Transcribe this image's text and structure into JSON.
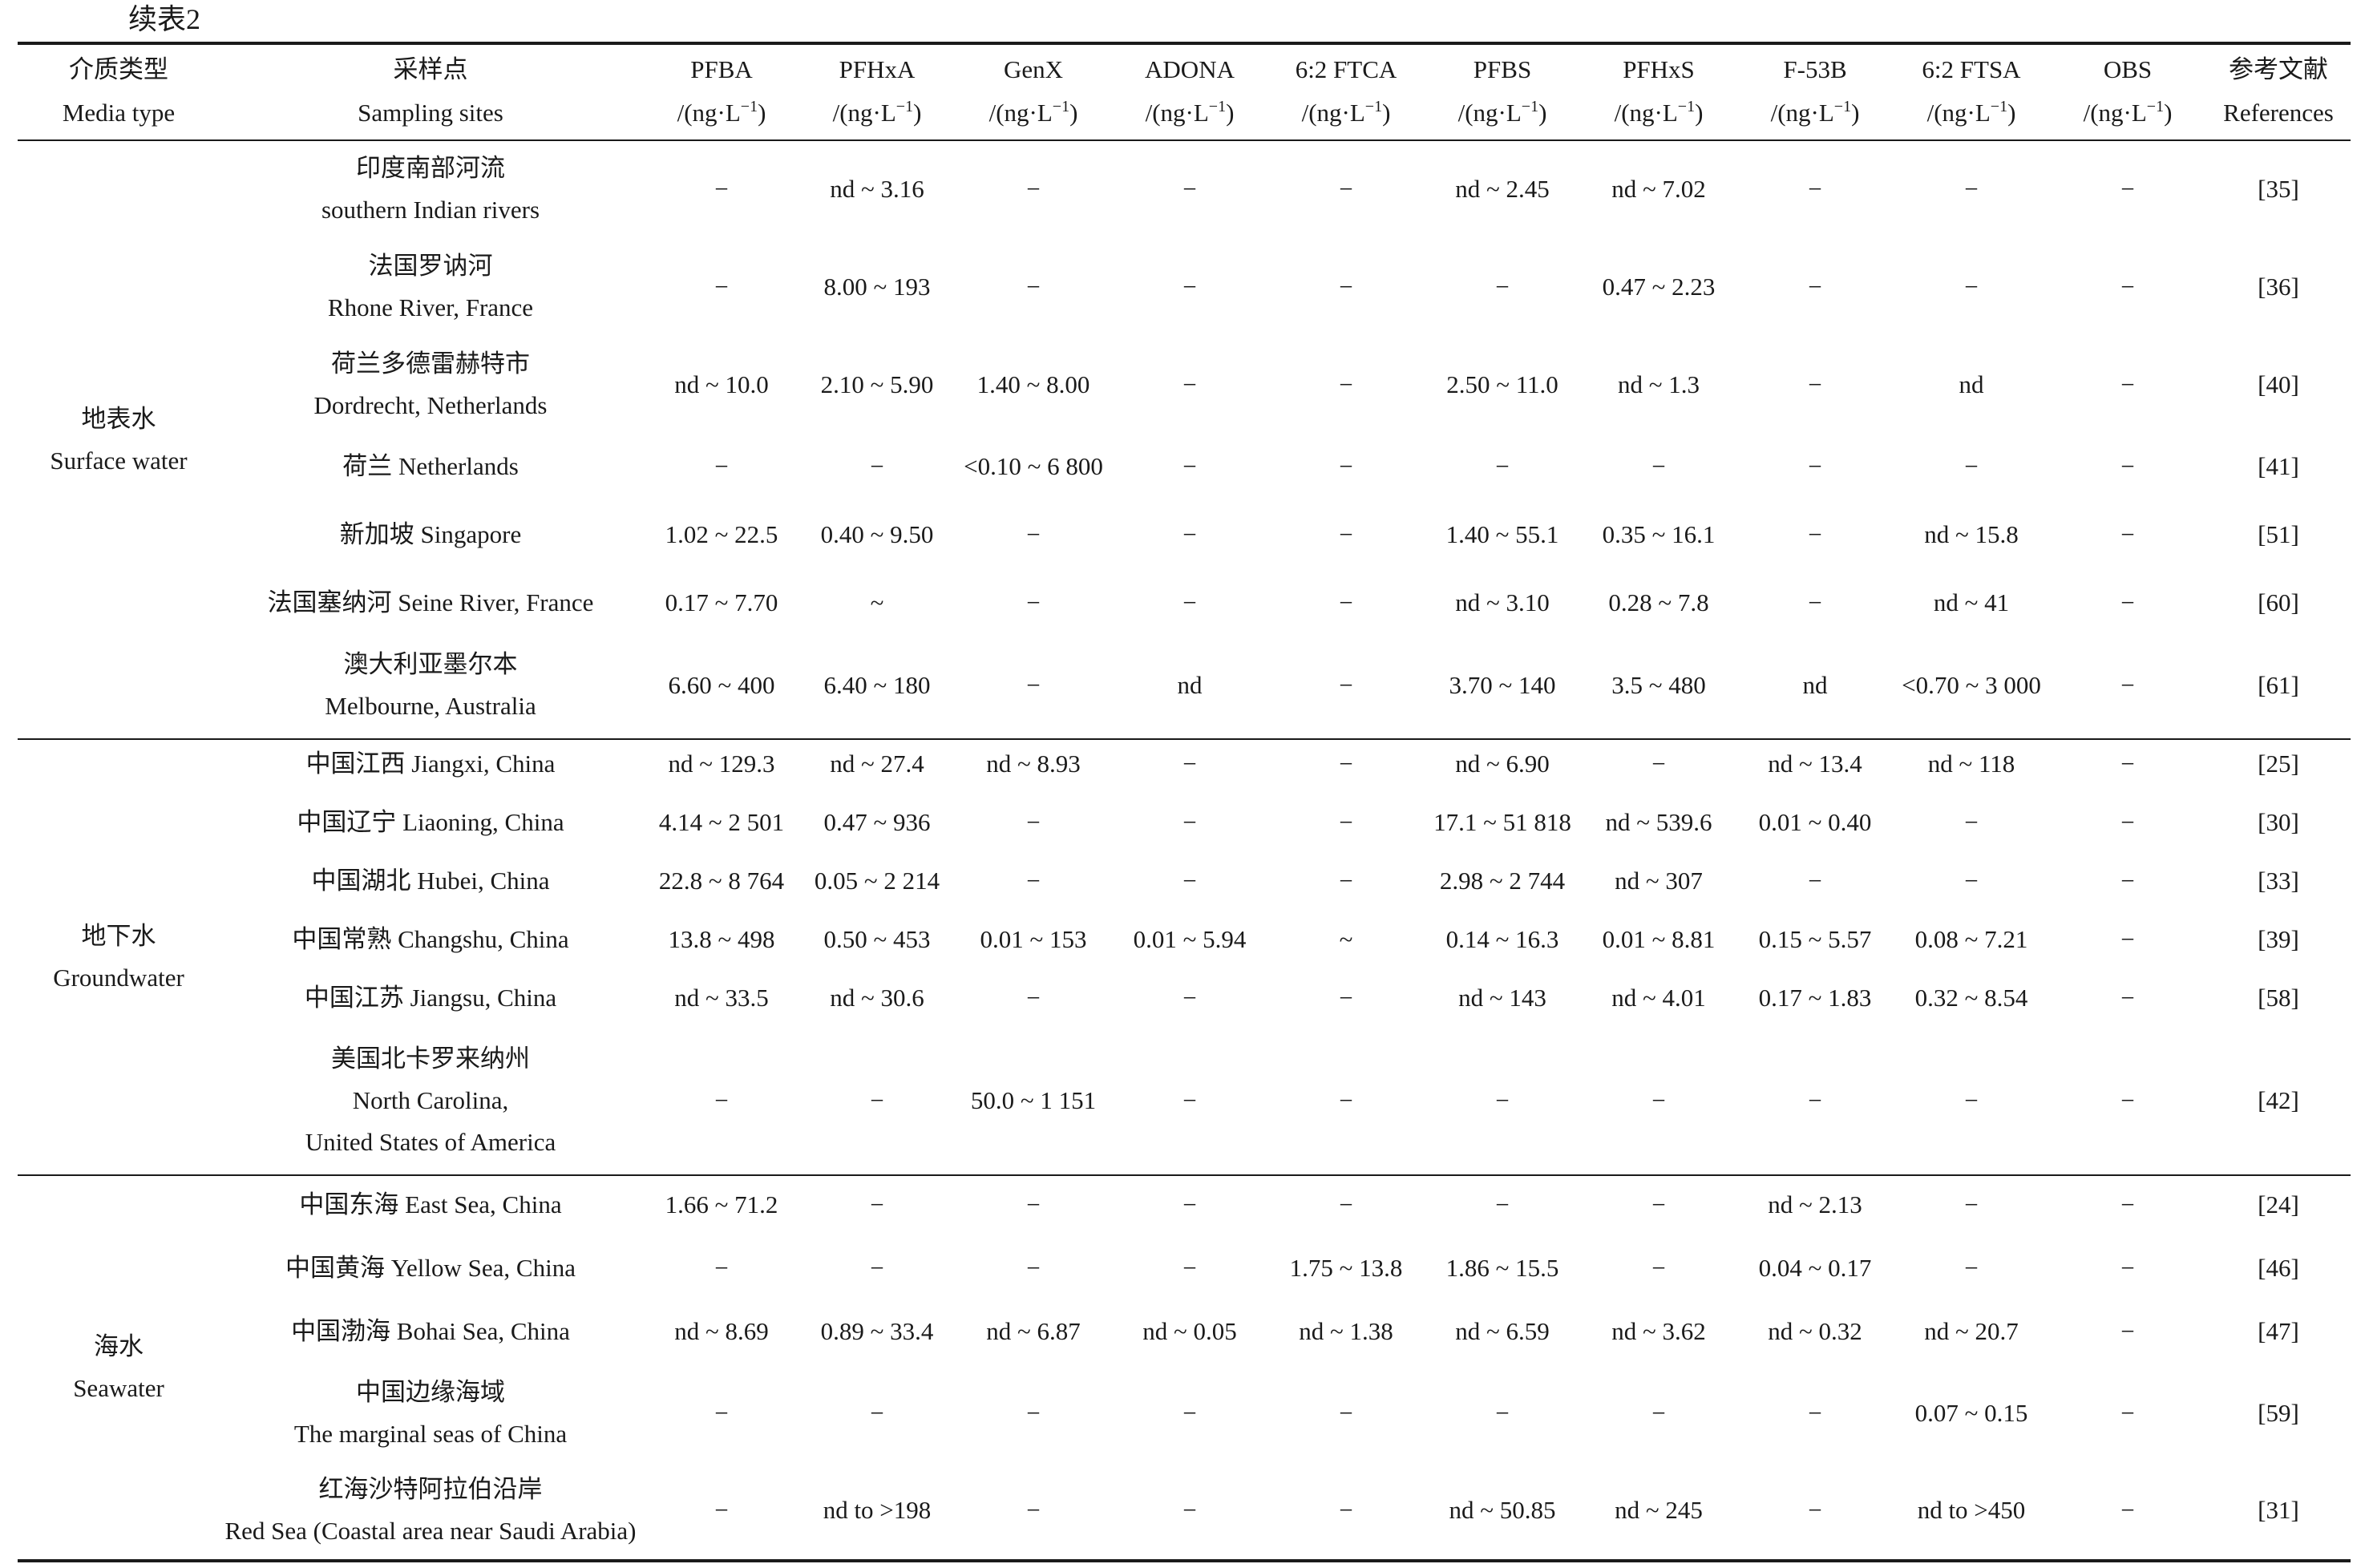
{
  "caption": "续表2",
  "header": {
    "media_zh": "介质类型",
    "media_en": "Media type",
    "site_zh": "采样点",
    "site_en": "Sampling sites",
    "ref_zh": "参考文献",
    "ref_en": "References",
    "unit_prefix": "/(ng·L",
    "unit_sup": "−1",
    "unit_suffix": ")",
    "compounds": [
      "PFBA",
      "PFHxA",
      "GenX",
      "ADONA",
      "6:2 FTCA",
      "PFBS",
      "PFHxS",
      "F-53B",
      "6:2 FTSA",
      "OBS"
    ]
  },
  "groups": [
    {
      "media_zh": "地表水",
      "media_en": "Surface water",
      "rows": [
        {
          "site": [
            "印度南部河流",
            "southern Indian rivers"
          ],
          "values": [
            "−",
            "nd ~ 3.16",
            "−",
            "−",
            "−",
            "nd ~ 2.45",
            "nd ~ 7.02",
            "−",
            "−",
            "−"
          ],
          "ref": "[35]"
        },
        {
          "site": [
            "法国罗讷河",
            "Rhone River, France"
          ],
          "values": [
            "−",
            "8.00 ~ 193",
            "−",
            "−",
            "−",
            "−",
            "0.47 ~ 2.23",
            "−",
            "−",
            "−"
          ],
          "ref": "[36]"
        },
        {
          "site": [
            "荷兰多德雷赫特市",
            "Dordrecht, Netherlands"
          ],
          "values": [
            "nd ~ 10.0",
            "2.10 ~ 5.90",
            "1.40 ~ 8.00",
            "−",
            "−",
            "2.50 ~ 11.0",
            "nd ~ 1.3",
            "−",
            "nd",
            "−"
          ],
          "ref": "[40]"
        },
        {
          "site": [
            "荷兰 Netherlands"
          ],
          "values": [
            "−",
            "−",
            "<0.10 ~ 6 800",
            "−",
            "−",
            "−",
            "−",
            "−",
            "−",
            "−"
          ],
          "ref": "[41]"
        },
        {
          "site": [
            "新加坡 Singapore"
          ],
          "values": [
            "1.02 ~ 22.5",
            "0.40 ~ 9.50",
            "−",
            "−",
            "−",
            "1.40 ~ 55.1",
            "0.35 ~ 16.1",
            "−",
            "nd ~ 15.8",
            "−"
          ],
          "ref": "[51]"
        },
        {
          "site": [
            "法国塞纳河 Seine River, France"
          ],
          "values": [
            "0.17 ~ 7.70",
            "~",
            "−",
            "−",
            "−",
            "nd ~ 3.10",
            "0.28 ~ 7.8",
            "−",
            "nd ~ 41",
            "−"
          ],
          "ref": "[60]"
        },
        {
          "site": [
            "澳大利亚墨尔本",
            "Melbourne, Australia"
          ],
          "values": [
            "6.60 ~ 400",
            "6.40 ~ 180",
            "−",
            "nd",
            "−",
            "3.70 ~ 140",
            "3.5 ~ 480",
            "nd",
            "<0.70 ~ 3 000",
            "−"
          ],
          "ref": "[61]"
        }
      ]
    },
    {
      "media_zh": "地下水",
      "media_en": "Groundwater",
      "rows": [
        {
          "site": [
            "中国江西 Jiangxi, China"
          ],
          "values": [
            "nd ~ 129.3",
            "nd ~ 27.4",
            "nd ~ 8.93",
            "−",
            "−",
            "nd ~ 6.90",
            "−",
            "nd ~ 13.4",
            "nd ~ 118",
            "−"
          ],
          "ref": "[25]"
        },
        {
          "site": [
            "中国辽宁 Liaoning, China"
          ],
          "values": [
            "4.14 ~ 2 501",
            "0.47 ~ 936",
            "−",
            "−",
            "−",
            "17.1 ~ 51 818",
            "nd ~ 539.6",
            "0.01 ~ 0.40",
            "−",
            "−"
          ],
          "ref": "[30]"
        },
        {
          "site": [
            "中国湖北 Hubei, China"
          ],
          "values": [
            "22.8 ~ 8 764",
            "0.05 ~ 2 214",
            "−",
            "−",
            "−",
            "2.98 ~ 2 744",
            "nd ~ 307",
            "−",
            "−",
            "−"
          ],
          "ref": "[33]"
        },
        {
          "site": [
            "中国常熟 Changshu, China"
          ],
          "values": [
            "13.8 ~ 498",
            "0.50 ~ 453",
            "0.01 ~ 153",
            "0.01 ~ 5.94",
            "~",
            "0.14 ~ 16.3",
            "0.01 ~ 8.81",
            "0.15 ~ 5.57",
            "0.08 ~ 7.21",
            "−"
          ],
          "ref": "[39]"
        },
        {
          "site": [
            "中国江苏 Jiangsu, China"
          ],
          "values": [
            "nd ~ 33.5",
            "nd ~ 30.6",
            "−",
            "−",
            "−",
            "nd ~ 143",
            "nd ~ 4.01",
            "0.17 ~ 1.83",
            "0.32 ~ 8.54",
            "−"
          ],
          "ref": "[58]"
        },
        {
          "site": [
            "美国北卡罗来纳州",
            "North Carolina,",
            "United States of America"
          ],
          "values": [
            "−",
            "−",
            "50.0 ~ 1 151",
            "−",
            "−",
            "−",
            "−",
            "−",
            "−",
            "−"
          ],
          "ref": "[42]"
        }
      ]
    },
    {
      "media_zh": "海水",
      "media_en": "Seawater",
      "rows": [
        {
          "site": [
            "中国东海 East Sea, China"
          ],
          "values": [
            "1.66 ~ 71.2",
            "−",
            "−",
            "−",
            "−",
            "−",
            "−",
            "nd ~ 2.13",
            "−",
            "−"
          ],
          "ref": "[24]"
        },
        {
          "site": [
            "中国黄海 Yellow Sea, China"
          ],
          "values": [
            "−",
            "−",
            "−",
            "−",
            "1.75 ~ 13.8",
            "1.86 ~ 15.5",
            "−",
            "0.04 ~ 0.17",
            "−",
            "−"
          ],
          "ref": "[46]"
        },
        {
          "site": [
            "中国渤海 Bohai Sea, China"
          ],
          "values": [
            "nd ~ 8.69",
            "0.89 ~ 33.4",
            "nd ~ 6.87",
            "nd ~ 0.05",
            "nd ~ 1.38",
            "nd ~ 6.59",
            "nd ~ 3.62",
            "nd ~ 0.32",
            "nd ~ 20.7",
            "−"
          ],
          "ref": "[47]"
        },
        {
          "site": [
            "中国边缘海域",
            "The marginal seas of China"
          ],
          "values": [
            "−",
            "−",
            "−",
            "−",
            "−",
            "−",
            "−",
            "−",
            "0.07 ~ 0.15",
            "−"
          ],
          "ref": "[59]"
        },
        {
          "site": [
            "红海沙特阿拉伯沿岸",
            "Red Sea (Coastal area near Saudi Arabia)"
          ],
          "values": [
            "−",
            "nd to >198",
            "−",
            "−",
            "−",
            "nd ~ 50.85",
            "nd ~ 245",
            "−",
            "nd to >450",
            "−"
          ],
          "ref": "[31]"
        }
      ]
    }
  ]
}
